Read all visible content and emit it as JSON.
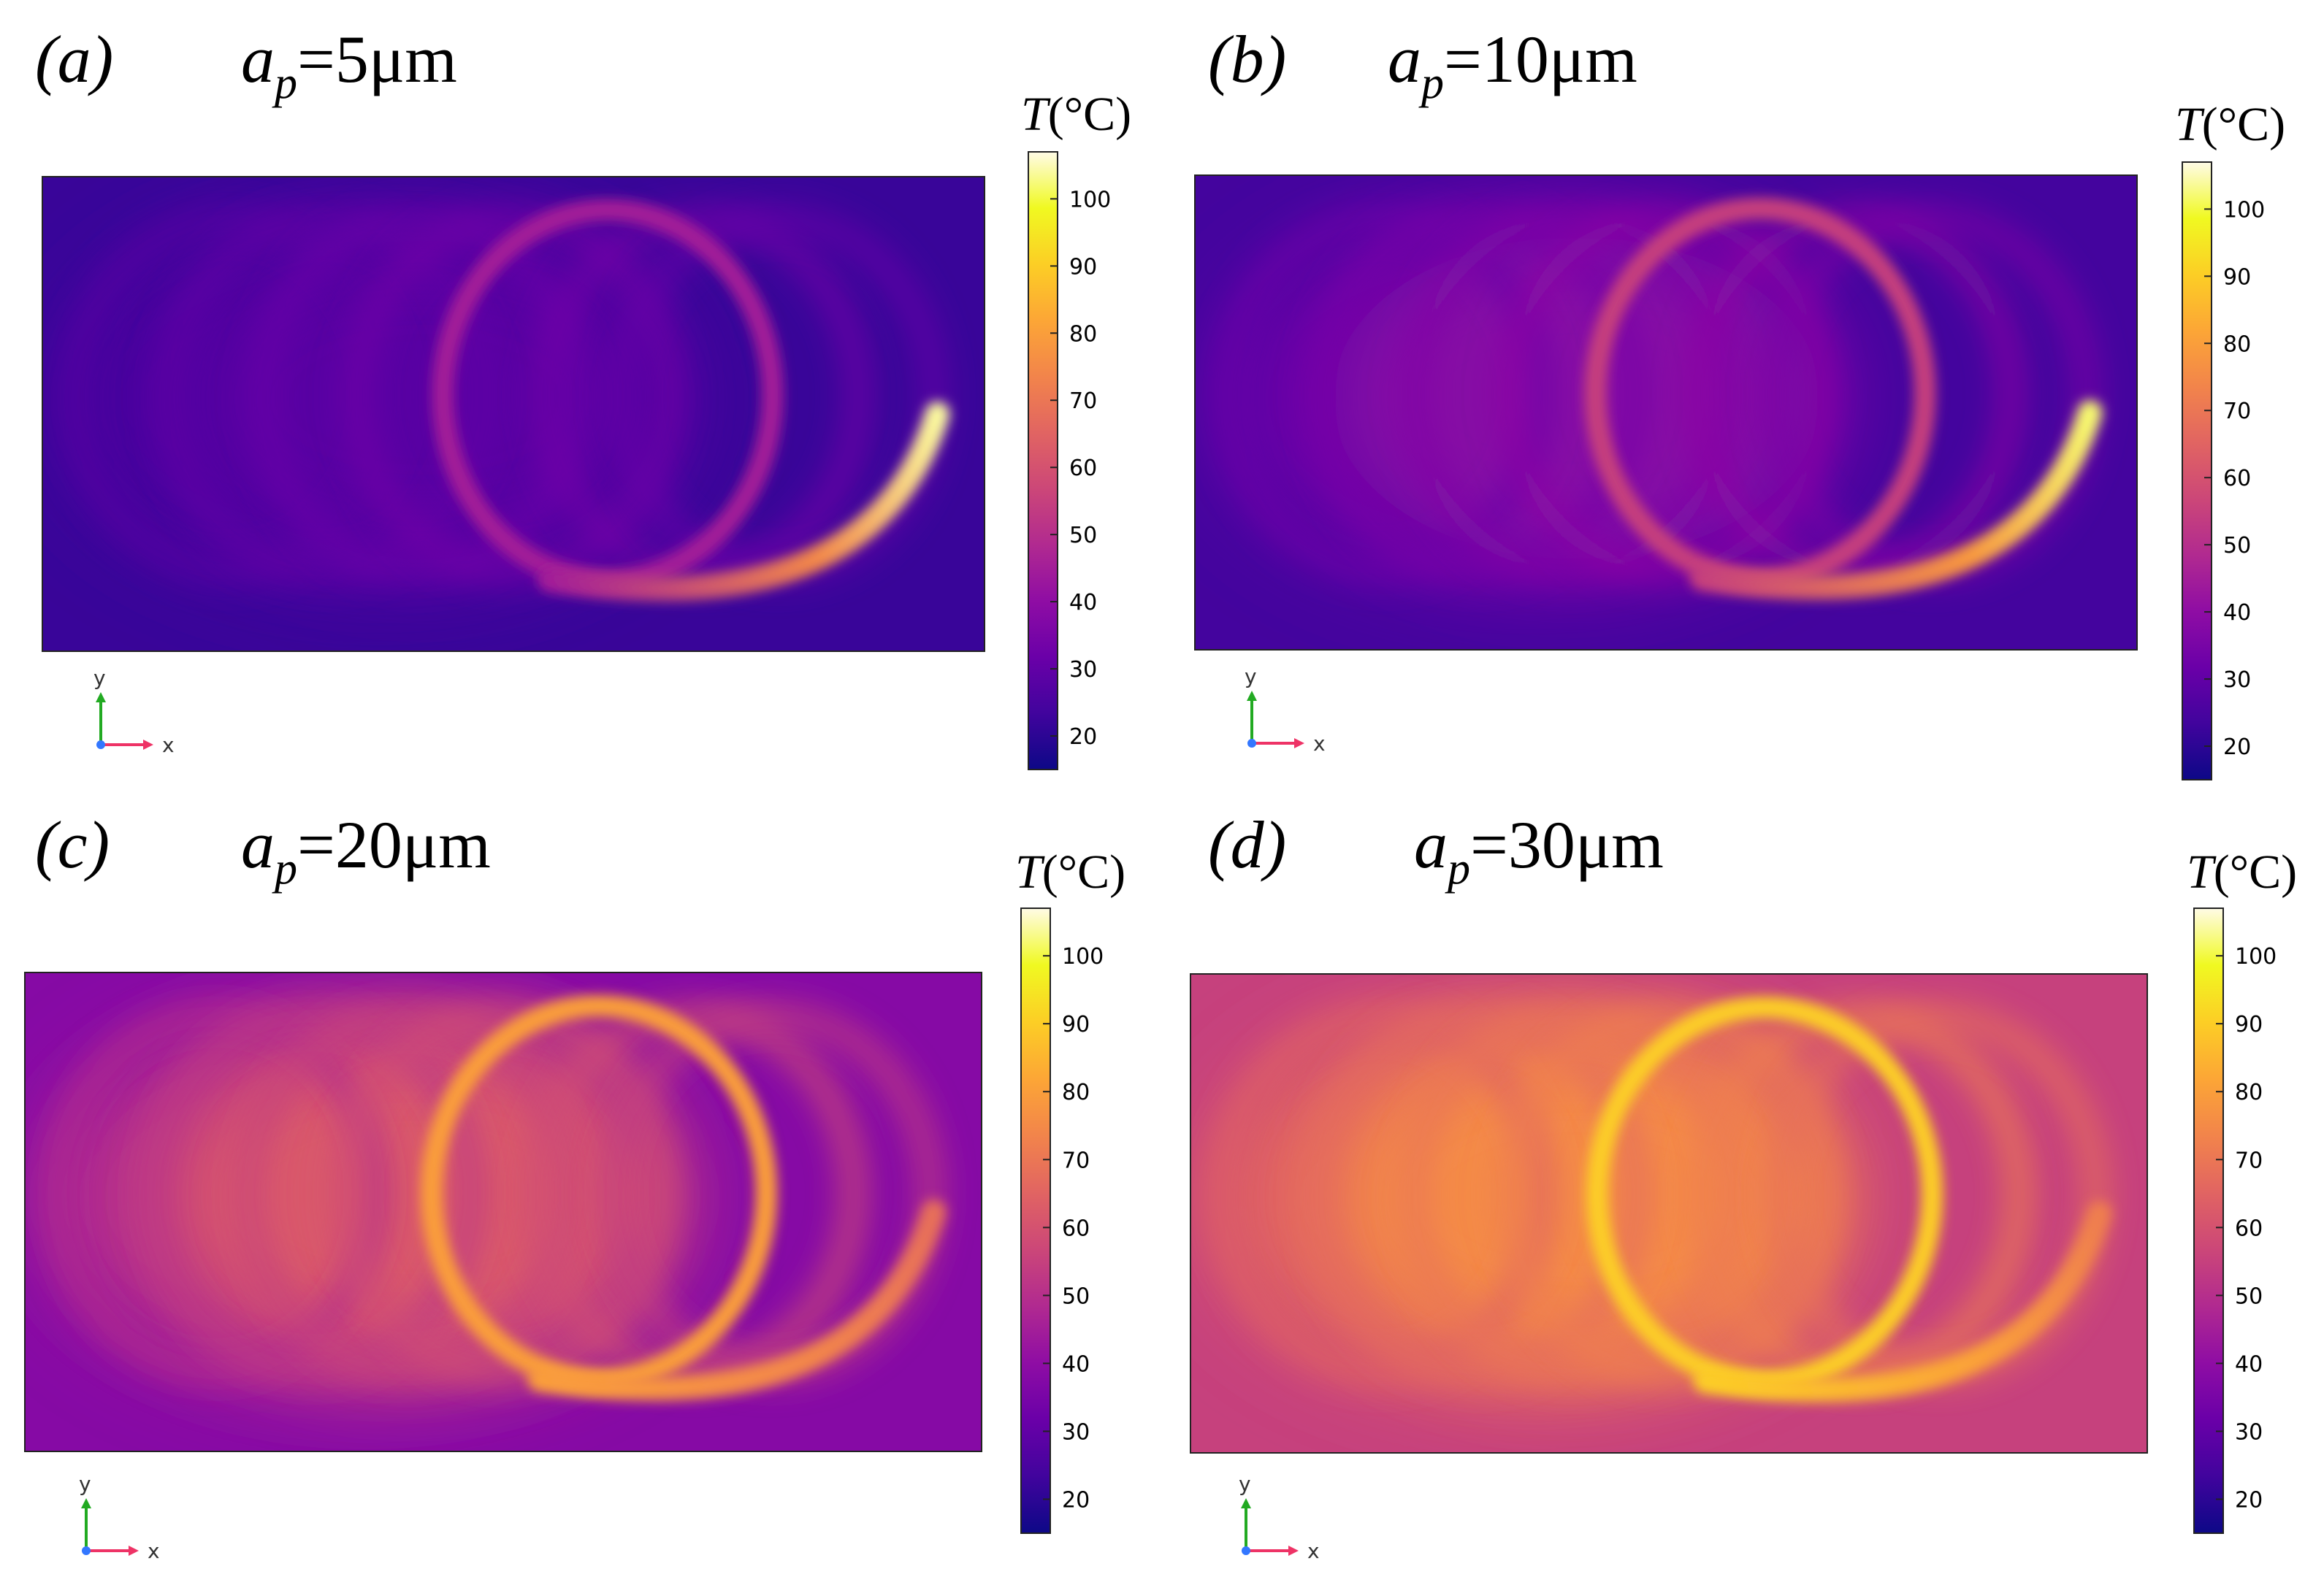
{
  "colors": {
    "colormap": [
      "#0d0887",
      "#41049d",
      "#6a00a8",
      "#8f0da4",
      "#b12a90",
      "#cc4778",
      "#e16462",
      "#f2844b",
      "#fca636",
      "#fcce25",
      "#f0f921",
      "#fffbe6"
    ],
    "axis_y": "#22aa22",
    "axis_x": "#ee3366",
    "axis_origin": "#3377ff"
  },
  "icons": {
    "axis_triad": "xy-axis-triad-icon"
  },
  "chart_data": [
    {
      "type": "heatmap",
      "panel": "(a)",
      "param_name": "a",
      "param_sub": "p",
      "param_value": "=5μm",
      "colorbar_title": "T(°C)",
      "colorbar_ticks": [
        20,
        30,
        40,
        50,
        60,
        70,
        80,
        90,
        100
      ],
      "clim": [
        15,
        107
      ],
      "background_T": 22,
      "field_peak_T": 28,
      "track_T": 45,
      "tail_peak_T": 104,
      "axis_labels": [
        "y",
        "x"
      ]
    },
    {
      "type": "heatmap",
      "panel": "(b)",
      "param_name": "a",
      "param_sub": "p",
      "param_value": "=10μm",
      "colorbar_title": "T(°C)",
      "colorbar_ticks": [
        20,
        30,
        40,
        50,
        60,
        70,
        80,
        90,
        100
      ],
      "clim": [
        15,
        107
      ],
      "background_T": 24,
      "field_peak_T": 38,
      "track_T": 55,
      "tail_peak_T": 102,
      "axis_labels": [
        "y",
        "x"
      ]
    },
    {
      "type": "heatmap",
      "panel": "(c)",
      "param_name": "a",
      "param_sub": "p",
      "param_value": "=20μm",
      "colorbar_title": "T(°C)",
      "colorbar_ticks": [
        20,
        30,
        40,
        50,
        60,
        70,
        80,
        90,
        100
      ],
      "clim": [
        15,
        107
      ],
      "background_T": 38,
      "field_peak_T": 62,
      "track_T": 80,
      "tail_peak_T": 68,
      "axis_labels": [
        "y",
        "x"
      ]
    },
    {
      "type": "heatmap",
      "panel": "(d)",
      "param_name": "a",
      "param_sub": "p",
      "param_value": "=30μm",
      "colorbar_title": "T(°C)",
      "colorbar_ticks": [
        20,
        30,
        40,
        50,
        60,
        70,
        80,
        90,
        100
      ],
      "clim": [
        15,
        107
      ],
      "background_T": 55,
      "field_peak_T": 75,
      "track_T": 90,
      "tail_peak_T": 72,
      "axis_labels": [
        "y",
        "x"
      ]
    }
  ]
}
